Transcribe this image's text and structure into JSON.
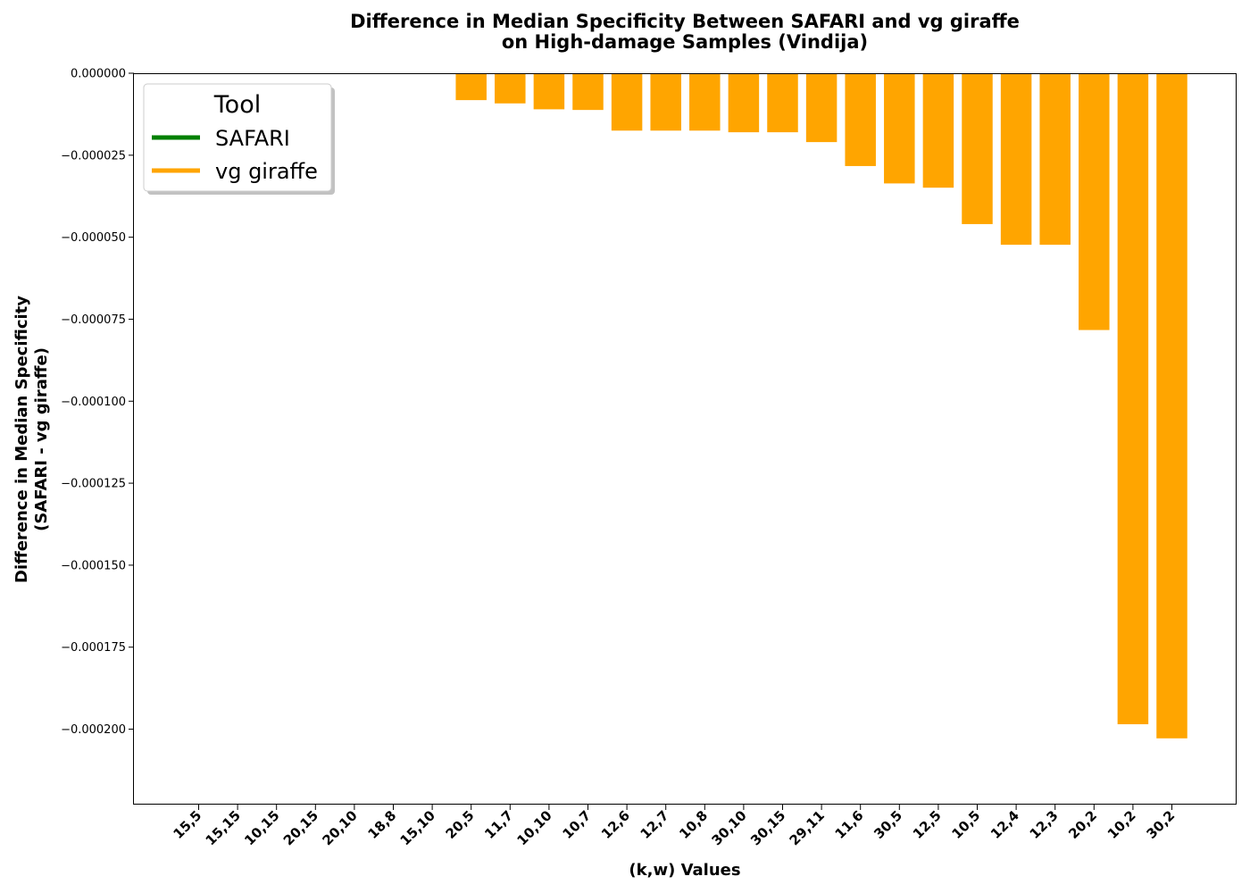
{
  "chart_data": {
    "type": "bar",
    "title_line1": "Difference in Median Specificity Between SAFARI and vg giraffe",
    "title_line2": "on High-damage Samples (Vindija)",
    "xlabel": "(k,w) Values",
    "ylabel_line1": "Difference in Median Specificity",
    "ylabel_line2": "(SAFARI - vg giraffe)",
    "ylim": [
      -0.000223,
      0.0
    ],
    "yticks": [
      0.0,
      -2.5e-05,
      -5e-05,
      -7.5e-05,
      -0.0001,
      -0.000125,
      -0.00015,
      -0.000175,
      -0.0002
    ],
    "ytick_labels": [
      "0.000000",
      "−0.000025",
      "−0.000050",
      "−0.000075",
      "−0.000100",
      "−0.000125",
      "−0.000150",
      "−0.000175",
      "−0.000200"
    ],
    "categories": [
      "15,5",
      "15,15",
      "10,15",
      "20,15",
      "20,10",
      "18,8",
      "15,10",
      "20,5",
      "11,7",
      "10,10",
      "10,7",
      "12,6",
      "12,7",
      "10,8",
      "30,10",
      "30,15",
      "29,11",
      "11,6",
      "30,5",
      "12,5",
      "10,5",
      "12,4",
      "12,3",
      "20,2",
      "10,2",
      "30,2"
    ],
    "values": [
      0,
      0,
      0,
      0,
      0,
      0,
      0,
      -8.2e-06,
      -9.2e-06,
      -1.1e-05,
      -1.12e-05,
      -1.75e-05,
      -1.75e-05,
      -1.75e-05,
      -1.8e-05,
      -1.8e-05,
      -2.1e-05,
      -2.83e-05,
      -3.36e-05,
      -3.49e-05,
      -4.6e-05,
      -5.23e-05,
      -5.23e-05,
      -7.83e-05,
      -0.0001985,
      -0.0002028
    ],
    "bar_color": "#ffa500",
    "grid": false,
    "legend": {
      "title": "Tool",
      "placement": "top-left",
      "entries": [
        {
          "label": "SAFARI",
          "color": "#008000"
        },
        {
          "label": "vg giraffe",
          "color": "#ffa500"
        }
      ]
    }
  }
}
